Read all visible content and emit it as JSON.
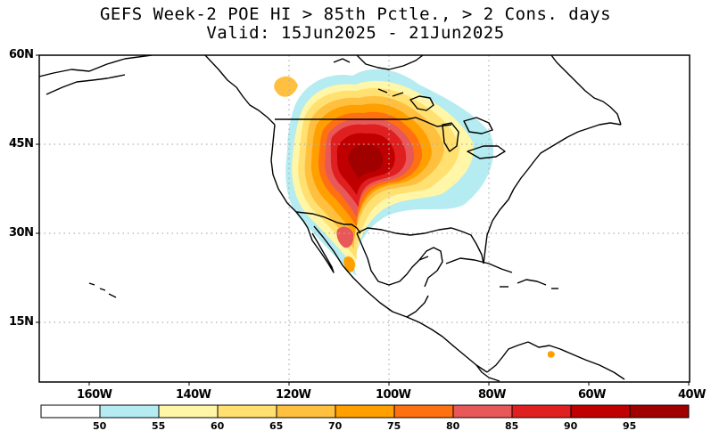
{
  "title": {
    "line1": "GEFS Week-2 POE HI > 85th Pctle., > 2 Cons. days",
    "line2": "Valid: 15Jun2025 - 21Jun2025"
  },
  "lat_labels": [
    "60N",
    "45N",
    "30N",
    "15N"
  ],
  "lon_labels": [
    "160W",
    "140W",
    "120W",
    "100W",
    "80W",
    "60W",
    "40W"
  ],
  "colorbar": {
    "colors": [
      "#ffffff",
      "#b4ecf2",
      "#fff6a8",
      "#ffe070",
      "#ffc040",
      "#ffa000",
      "#ff7010",
      "#e85858",
      "#e02020",
      "#c00000",
      "#a00000"
    ],
    "labels": [
      "50",
      "55",
      "60",
      "65",
      "70",
      "75",
      "80",
      "85",
      "90",
      "95"
    ]
  },
  "map_style": {
    "land_background": "#ffffff",
    "coast_color": "#000000",
    "gridline_color": "#b0b0b0"
  }
}
